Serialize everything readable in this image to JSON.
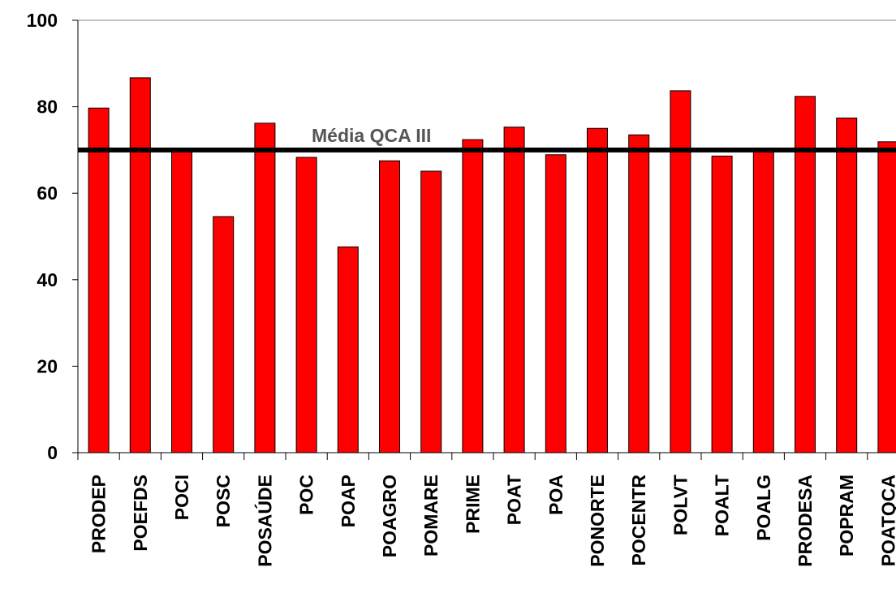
{
  "chart_data": {
    "type": "bar",
    "title": "",
    "xlabel": "",
    "ylabel": "",
    "ylim": [
      0,
      100
    ],
    "yticks": [
      0,
      20,
      40,
      60,
      80,
      100
    ],
    "grid": false,
    "categories": [
      "PRODEP",
      "POEFDS",
      "POCI",
      "POSC",
      "POSAÚDE",
      "POC",
      "POAP",
      "POAGRO",
      "POMARE",
      "PRIME",
      "POAT",
      "POA",
      "PONORTE",
      "POCENTR",
      "POLVT",
      "POALT",
      "POALG",
      "PRODESA",
      "POPRAM",
      "POATQCA"
    ],
    "values": [
      79.7,
      86.7,
      69.8,
      54.6,
      76.2,
      68.3,
      47.6,
      67.5,
      65.1,
      72.4,
      75.3,
      68.9,
      75.0,
      73.5,
      83.7,
      68.6,
      69.8,
      82.4,
      77.4,
      71.9
    ],
    "bar_color": "#ff0000",
    "reference_line": {
      "label": "Média QCA III",
      "value": 70.0,
      "color": "#000000",
      "label_color": "#555555"
    }
  }
}
